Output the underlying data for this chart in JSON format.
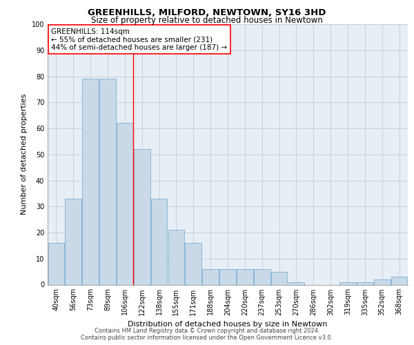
{
  "title": "GREENHILLS, MILFORD, NEWTOWN, SY16 3HD",
  "subtitle": "Size of property relative to detached houses in Newtown",
  "xlabel": "Distribution of detached houses by size in Newtown",
  "ylabel": "Number of detached properties",
  "categories": [
    "40sqm",
    "56sqm",
    "73sqm",
    "89sqm",
    "106sqm",
    "122sqm",
    "138sqm",
    "155sqm",
    "171sqm",
    "188sqm",
    "204sqm",
    "220sqm",
    "237sqm",
    "253sqm",
    "270sqm",
    "286sqm",
    "302sqm",
    "319sqm",
    "335sqm",
    "352sqm",
    "368sqm"
  ],
  "values": [
    16,
    33,
    79,
    79,
    62,
    52,
    33,
    21,
    16,
    6,
    6,
    6,
    6,
    5,
    1,
    0,
    0,
    1,
    1,
    2,
    3
  ],
  "bar_color": "#c9d9e8",
  "bar_edge_color": "#7bafd4",
  "highlight_index": 4,
  "annotation_box_text": "GREENHILLS: 114sqm\n← 55% of detached houses are smaller (231)\n44% of semi-detached houses are larger (187) →",
  "ylim": [
    0,
    100
  ],
  "yticks": [
    0,
    10,
    20,
    30,
    40,
    50,
    60,
    70,
    80,
    90,
    100
  ],
  "grid_color": "#c8d0dc",
  "background_color": "#e8eef5",
  "footer_line1": "Contains HM Land Registry data © Crown copyright and database right 2024.",
  "footer_line2": "Contains public sector information licensed under the Open Government Licence v3.0.",
  "title_fontsize": 9.5,
  "subtitle_fontsize": 8.5,
  "xlabel_fontsize": 8,
  "ylabel_fontsize": 8,
  "tick_fontsize": 7,
  "annotation_fontsize": 7.5,
  "footer_fontsize": 6
}
